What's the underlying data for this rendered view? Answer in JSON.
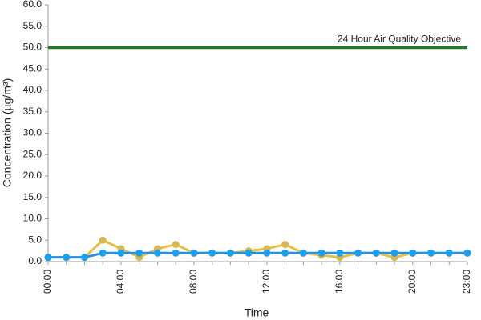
{
  "chart_data": {
    "type": "line",
    "x_label": "Time",
    "y_label": "Concentration (µg/m³)",
    "categories": [
      "00:00",
      null,
      null,
      null,
      "04:00",
      null,
      null,
      null,
      "08:00",
      null,
      null,
      null,
      "12:00",
      null,
      null,
      null,
      "16:00",
      null,
      null,
      null,
      "20:00",
      null,
      null,
      "23:00"
    ],
    "series": [
      {
        "color": "#e8c040",
        "marker_color": "#d8b850",
        "values": [
          1,
          1,
          1,
          5,
          3,
          1,
          3,
          4,
          2,
          2,
          2,
          2.5,
          3,
          4,
          2,
          1.5,
          1,
          2,
          2,
          1,
          2,
          2,
          2,
          2
        ]
      },
      {
        "color": "#2a8fe0",
        "marker_color": "#1a9ff0",
        "values": [
          1,
          1,
          1,
          2,
          2,
          2,
          2,
          2,
          2,
          2,
          2,
          2,
          2,
          2,
          2,
          2,
          2,
          2,
          2,
          2,
          2,
          2,
          2,
          2
        ]
      }
    ],
    "reference_line": {
      "value": 50,
      "label": "24 Hour Air Quality Objective",
      "color": "#1e7a1e"
    },
    "ylim": [
      0,
      60
    ],
    "yticks": [
      {
        "value": 0,
        "label": "0.0"
      },
      {
        "value": 5,
        "label": "5.0"
      },
      {
        "value": 10,
        "label": "10.0"
      },
      {
        "value": 15,
        "label": "15.0"
      },
      {
        "value": 20,
        "label": "20.0"
      },
      {
        "value": 25,
        "label": "25.0"
      },
      {
        "value": 30,
        "label": "30.0"
      },
      {
        "value": 35,
        "label": "35.0"
      },
      {
        "value": 40,
        "label": "40.0"
      },
      {
        "value": 45,
        "label": "45.0"
      },
      {
        "value": 50,
        "label": "50.0"
      },
      {
        "value": 55,
        "label": "55.0"
      },
      {
        "value": 60,
        "label": "60.0"
      }
    ],
    "grid": false
  }
}
